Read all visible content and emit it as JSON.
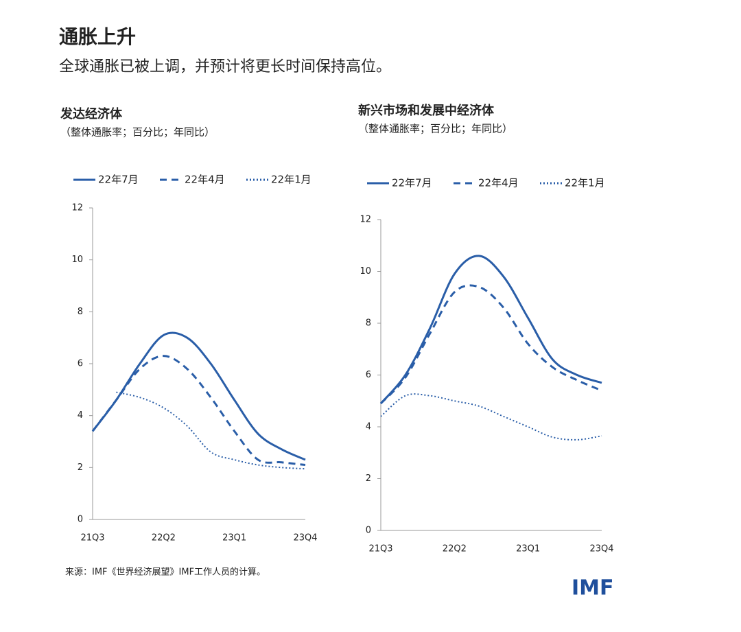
{
  "header": {
    "title": "通胀上升",
    "subtitle": "全球通胀已被上调，并预计将更长时间保持高位。"
  },
  "chart_data": [
    {
      "type": "line",
      "title": "发达经济体",
      "subtitle": "（整体通胀率；百分比；年同比）",
      "categories": [
        "21Q3",
        null,
        null,
        "22Q2",
        null,
        null,
        "23Q1",
        null,
        null,
        "23Q4"
      ],
      "ylim": [
        0,
        12
      ],
      "yticks": [
        0,
        2,
        4,
        6,
        8,
        10,
        12
      ],
      "series": [
        {
          "name": "22年7月",
          "color": "#2a5ea8",
          "style": "solid",
          "values": [
            3.4,
            4.6,
            6.0,
            7.1,
            7.0,
            6.0,
            4.6,
            3.3,
            2.7,
            2.3
          ]
        },
        {
          "name": "22年4月",
          "color": "#2a5ea8",
          "style": "dashed",
          "values": [
            3.4,
            4.6,
            5.8,
            6.3,
            5.8,
            4.7,
            3.4,
            2.3,
            2.2,
            2.1
          ]
        },
        {
          "name": "22年1月",
          "color": "#2a5ea8",
          "style": "dotted",
          "values": [
            null,
            4.9,
            4.7,
            4.3,
            3.6,
            2.6,
            2.3,
            2.1,
            2.0,
            1.95
          ]
        }
      ]
    },
    {
      "type": "line",
      "title": "新兴市场和发展中经济体",
      "subtitle": "（整体通胀率；百分比；年同比）",
      "categories": [
        "21Q3",
        null,
        null,
        "22Q2",
        null,
        null,
        "23Q1",
        null,
        null,
        "23Q4"
      ],
      "ylim": [
        0,
        12
      ],
      "yticks": [
        0,
        2,
        4,
        6,
        8,
        10,
        12
      ],
      "series": [
        {
          "name": "22年7月",
          "color": "#2a5ea8",
          "style": "solid",
          "values": [
            4.9,
            6.0,
            7.8,
            9.9,
            10.6,
            9.8,
            8.2,
            6.6,
            6.0,
            5.7
          ]
        },
        {
          "name": "22年4月",
          "color": "#2a5ea8",
          "style": "dashed",
          "values": [
            4.9,
            5.9,
            7.6,
            9.2,
            9.4,
            8.6,
            7.2,
            6.3,
            5.8,
            5.4
          ]
        },
        {
          "name": "22年1月",
          "color": "#2a5ea8",
          "style": "dotted",
          "values": [
            4.4,
            5.2,
            5.2,
            5.0,
            4.8,
            4.4,
            4.0,
            3.6,
            3.5,
            3.65
          ]
        }
      ]
    }
  ],
  "source": "来源：IMF《世界经济展望》IMF工作人员的计算。",
  "logo": "IMF"
}
